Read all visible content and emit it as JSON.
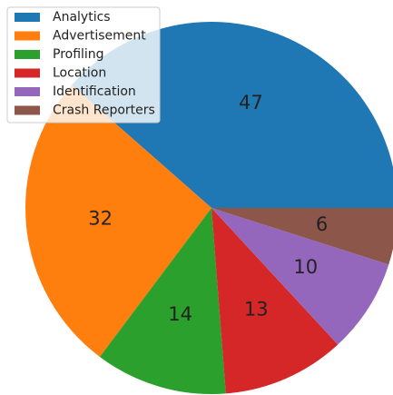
{
  "chart_data": {
    "type": "pie",
    "categories": [
      "Analytics",
      "Advertisement",
      "Profiling",
      "Location",
      "Identification",
      "Crash Reporters"
    ],
    "values": [
      47,
      32,
      14,
      13,
      10,
      6
    ],
    "colors": [
      "#1f77b4",
      "#ff7f0e",
      "#2ca02c",
      "#d62728",
      "#9467bd",
      "#8c564b"
    ],
    "legend": "upper left"
  }
}
